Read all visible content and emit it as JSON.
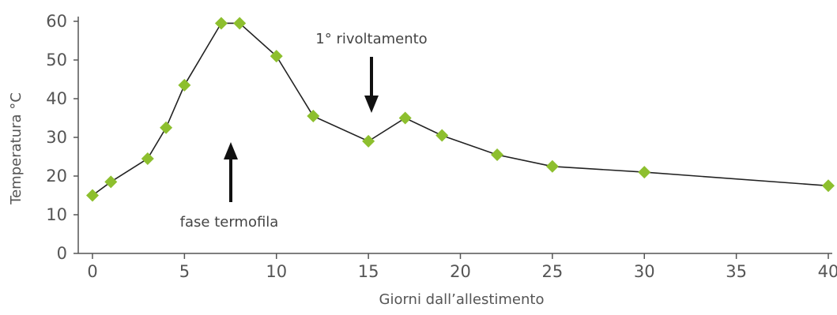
{
  "chart_data": {
    "type": "line",
    "title": "",
    "xlabel": "Giorni dall’allestimento",
    "ylabel": "Temperatura °C",
    "xlim": [
      0,
      40
    ],
    "ylim": [
      0,
      60
    ],
    "xticks": [
      "0",
      "5",
      "10",
      "15",
      "20",
      "25",
      "30",
      "35",
      "40"
    ],
    "yticks": [
      "0",
      "10",
      "20",
      "30",
      "40",
      "50",
      "60"
    ],
    "grid": false,
    "series": [
      {
        "x": [
          0,
          1,
          3,
          4,
          5,
          7,
          8,
          10,
          12,
          15,
          17,
          19,
          22,
          25,
          30,
          40
        ],
        "y": [
          15,
          18.5,
          24.5,
          32.5,
          43.5,
          59.5,
          59.5,
          51,
          35.5,
          29,
          35,
          30.5,
          25.5,
          22.5,
          21,
          17.5
        ]
      }
    ],
    "annotations": [
      {
        "text": "fase termofila",
        "arrow": "up"
      },
      {
        "text": "1° rivoltamento",
        "arrow": "down"
      }
    ],
    "colors": {
      "line": "#222222",
      "marker": "#8dbf2e",
      "axis": "#555555",
      "arrow": "#111111"
    }
  }
}
